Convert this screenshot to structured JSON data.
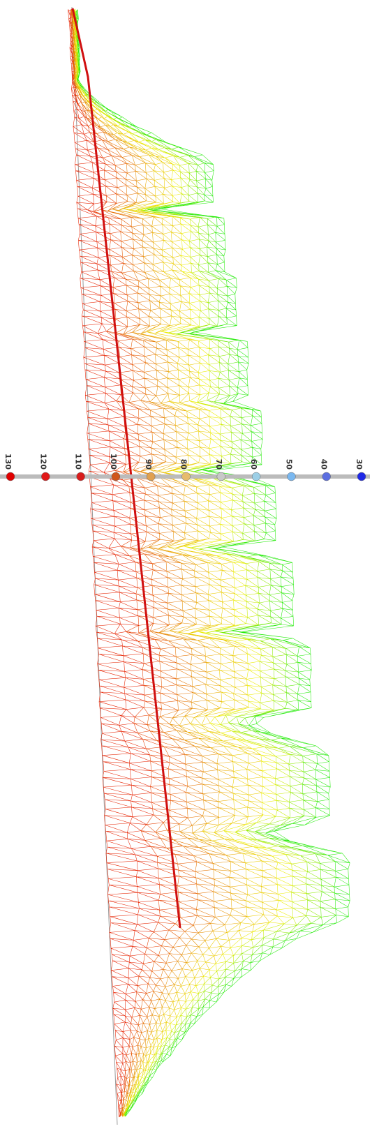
{
  "color_scale": {
    "ticks": [
      130,
      120,
      110,
      100,
      90,
      80,
      70,
      60,
      50,
      40,
      30
    ],
    "colors": [
      "#e00000",
      "#e01818",
      "#d81c1c",
      "#d0561c",
      "#e0a050",
      "#e6bc6c",
      "#c8c8c8",
      "#9ccfe6",
      "#7ab8f0",
      "#5c6ee0",
      "#1e28e6"
    ]
  }
}
